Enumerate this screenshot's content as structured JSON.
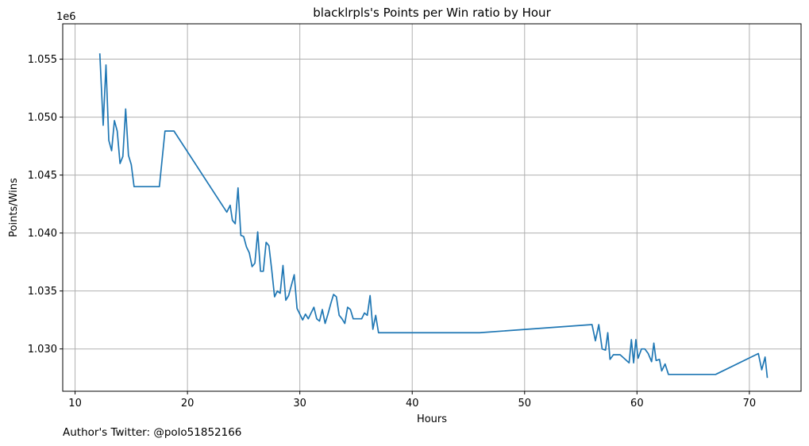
{
  "chart_data": {
    "type": "line",
    "title": "blacklrpls's Points per Win ratio by Hour",
    "xlabel": "Hours",
    "ylabel": "Points/Wins",
    "y_offset_label": "1e6",
    "xlim": [
      8.9,
      74.6
    ],
    "ylim": [
      1.02635,
      1.05805
    ],
    "x_ticks": [
      10,
      20,
      30,
      40,
      50,
      60,
      70
    ],
    "x_tick_labels": [
      "10",
      "20",
      "30",
      "40",
      "50",
      "60",
      "70"
    ],
    "y_ticks": [
      1.03,
      1.035,
      1.04,
      1.045,
      1.05,
      1.055
    ],
    "y_tick_labels": [
      "1.030",
      "1.035",
      "1.040",
      "1.045",
      "1.050",
      "1.055"
    ],
    "grid": true,
    "line_color": "#1f77b4",
    "series": [
      {
        "x": [
          12.2,
          12.5,
          12.75,
          13.0,
          13.25,
          13.5,
          13.75,
          14.0,
          14.25,
          14.5,
          14.75,
          15.0,
          15.25,
          17.5,
          18.0,
          18.8,
          23.5,
          23.8,
          24.0,
          24.25,
          24.5,
          24.75,
          25.0,
          25.25,
          25.5,
          25.75,
          26.0,
          26.25,
          26.5,
          26.75,
          27.0,
          27.25,
          27.5,
          27.75,
          28.0,
          28.25,
          28.5,
          28.75,
          29.0,
          29.25,
          29.5,
          29.75,
          30.0,
          30.25,
          30.5,
          30.75,
          31.0,
          31.25,
          31.5,
          31.75,
          32.0,
          32.25,
          32.5,
          32.75,
          33.0,
          33.25,
          33.5,
          33.75,
          34.0,
          34.25,
          34.5,
          34.75,
          35.0,
          35.25,
          35.5,
          35.75,
          36.0,
          36.25,
          36.5,
          36.75,
          37.0,
          46.0,
          56.0,
          56.3,
          56.6,
          56.9,
          57.2,
          57.4,
          57.6,
          57.9,
          58.5,
          59.3,
          59.5,
          59.7,
          59.9,
          60.1,
          60.4,
          60.7,
          61.0,
          61.3,
          61.5,
          61.7,
          62.0,
          62.2,
          62.5,
          62.8,
          67.0,
          70.8,
          71.1,
          71.4,
          71.6
        ],
        "y": [
          1.0555,
          1.0493,
          1.0545,
          1.048,
          1.0471,
          1.0497,
          1.0488,
          1.046,
          1.0466,
          1.0507,
          1.0467,
          1.0459,
          1.044,
          1.044,
          1.0488,
          1.0488,
          1.0418,
          1.0424,
          1.0411,
          1.0408,
          1.0439,
          1.0398,
          1.0397,
          1.0388,
          1.0383,
          1.0371,
          1.0374,
          1.0401,
          1.0367,
          1.0367,
          1.0392,
          1.0389,
          1.0368,
          1.0345,
          1.035,
          1.0348,
          1.0372,
          1.0342,
          1.0346,
          1.0355,
          1.0364,
          1.0335,
          1.033,
          1.0325,
          1.033,
          1.0326,
          1.0331,
          1.0336,
          1.0326,
          1.0324,
          1.0334,
          1.0322,
          1.033,
          1.0339,
          1.0347,
          1.0345,
          1.0329,
          1.0326,
          1.0322,
          1.0336,
          1.0334,
          1.0326,
          1.0326,
          1.0326,
          1.0326,
          1.0331,
          1.0329,
          1.0346,
          1.0317,
          1.0329,
          1.0314,
          1.0314,
          1.0321,
          1.0307,
          1.0321,
          1.03,
          1.0299,
          1.0314,
          1.0291,
          1.0295,
          1.0295,
          1.0288,
          1.0308,
          1.0288,
          1.0308,
          1.0292,
          1.03,
          1.03,
          1.0296,
          1.0289,
          1.0305,
          1.029,
          1.0291,
          1.0281,
          1.0287,
          1.0278,
          1.0278,
          1.0296,
          1.0282,
          1.0293,
          1.0275
        ]
      }
    ]
  },
  "footer_text": "Author's Twitter: @polo51852166"
}
